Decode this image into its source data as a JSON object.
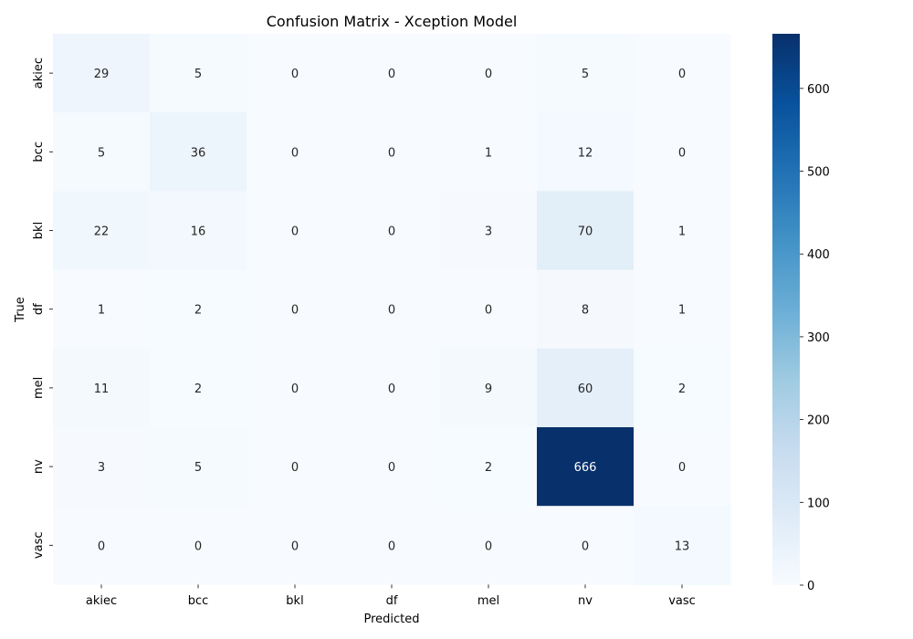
{
  "chart_data": {
    "type": "heatmap",
    "title": "Confusion Matrix - Xception Model",
    "xlabel": "Predicted",
    "ylabel": "True",
    "x_categories": [
      "akiec",
      "bcc",
      "bkl",
      "df",
      "mel",
      "nv",
      "vasc"
    ],
    "y_categories": [
      "akiec",
      "bcc",
      "bkl",
      "df",
      "mel",
      "nv",
      "vasc"
    ],
    "values": [
      [
        29,
        5,
        0,
        0,
        0,
        5,
        0
      ],
      [
        5,
        36,
        0,
        0,
        1,
        12,
        0
      ],
      [
        22,
        16,
        0,
        0,
        3,
        70,
        1
      ],
      [
        1,
        2,
        0,
        0,
        0,
        8,
        1
      ],
      [
        11,
        2,
        0,
        0,
        9,
        60,
        2
      ],
      [
        3,
        5,
        0,
        0,
        2,
        666,
        0
      ],
      [
        0,
        0,
        0,
        0,
        0,
        0,
        13
      ]
    ],
    "colormap": "Blues",
    "colorbar": {
      "min": 0,
      "max": 666,
      "ticks": [
        0,
        100,
        200,
        300,
        400,
        500,
        600
      ]
    }
  }
}
